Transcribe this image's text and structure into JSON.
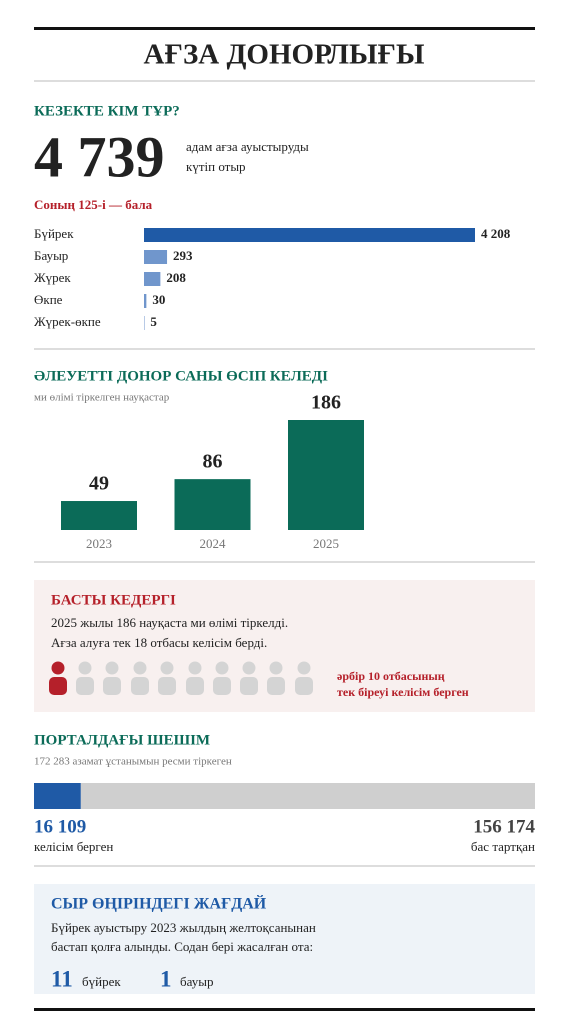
{
  "header": {
    "title": "АҒЗА ДОНОРЛЫҒЫ"
  },
  "queue": {
    "heading": "КЕЗЕКТЕ КІМ ТҰР?",
    "total": "4 739",
    "total_text": [
      "адам ағза ауыстыруды",
      "күтіп отыр"
    ],
    "children_note": "Соның 125-і — бала"
  },
  "barrier": {
    "heading": "БАСТЫ КЕДЕРГІ",
    "text": [
      "2025 жылы 186 науқаста ми өлімі тіркелді.",
      "Ағза алуға тек 18 отбасы келісім берді."
    ],
    "callout": [
      "әрбір 10 отбасының",
      "тек біреуі келісім берген"
    ]
  },
  "syr": {
    "heading": "СЫР ӨҢІРІНДЕГІ ЖАҒДАЙ",
    "text": [
      "Бүйрек ауыстыру 2023 жылдың желтоқсанынан",
      "бастап қолға алынды. Содан бері жасалған ота:"
    ],
    "stats": [
      {
        "value": "11",
        "label": "бүйрек"
      },
      {
        "value": "1",
        "label": "бауыр"
      }
    ]
  },
  "chart_data": [
    {
      "type": "hbar",
      "categories": [
        "Бүйрек",
        "Бауыр",
        "Жүрек",
        "Өкпе",
        "Жүрек-өкпе"
      ],
      "values": [
        4208,
        293,
        208,
        30,
        5
      ],
      "value_labels": [
        "4 208",
        "293",
        "208",
        "30",
        "5"
      ],
      "colors": [
        "#1f5aa6",
        "#7096cc",
        "#7096cc",
        "#7096cc",
        "#7096cc"
      ]
    },
    {
      "type": "bar",
      "title": "ӘЛЕУЕТТІ ДОНОР САНЫ ӨСІП КЕЛЕДІ",
      "subtitle": "ми өлімі тіркелген науқастар",
      "categories": [
        "2023",
        "2024",
        "2025"
      ],
      "values": [
        49,
        86,
        186
      ],
      "color": "#0b6b58"
    },
    {
      "type": "split",
      "title": "ПОРТАЛДАҒЫ ШЕШІМ",
      "subtitle": "172 283 азамат ұстанымын ресми тіркеген",
      "categories": [
        "келісім берген",
        "бас тартқан"
      ],
      "values": [
        16109,
        156174
      ],
      "value_labels": [
        "16 109",
        "156 174"
      ],
      "colors": [
        "#1f5aa6",
        "#cfcfcf"
      ],
      "label_colors": [
        "#1f5aa6",
        "#444444"
      ]
    }
  ]
}
